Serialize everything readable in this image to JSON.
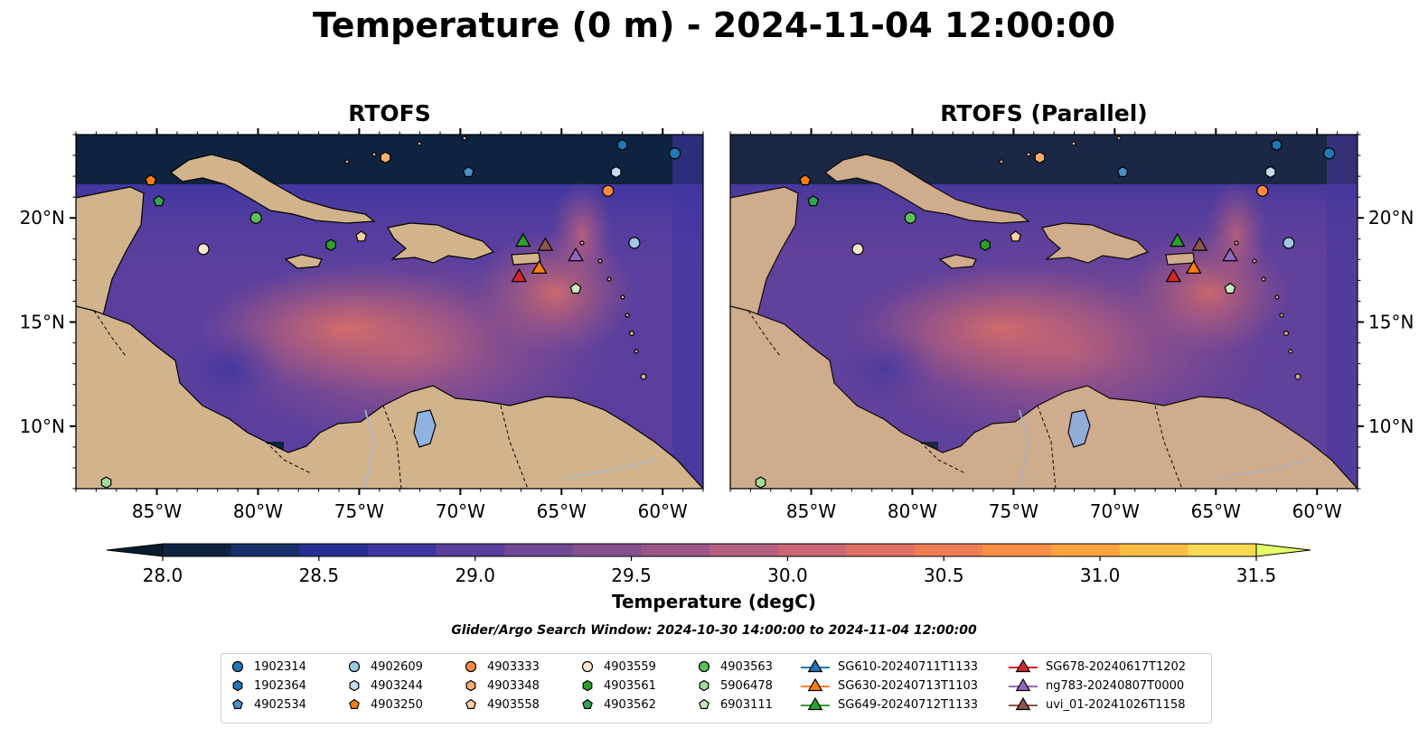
{
  "title": "Temperature (0 m) - 2024-11-04 12:00:00",
  "panels": [
    {
      "id": "left",
      "title": "RTOFS"
    },
    {
      "id": "right",
      "title": "RTOFS (Parallel)"
    }
  ],
  "map": {
    "lon_range": [
      -89,
      -58
    ],
    "lat_range": [
      7,
      24
    ],
    "x_ticks": [
      -85,
      -80,
      -75,
      -70,
      -65,
      -60
    ],
    "x_tick_labels": [
      "85°W",
      "80°W",
      "75°W",
      "70°W",
      "65°W",
      "60°W"
    ],
    "y_ticks": [
      10,
      15,
      20
    ],
    "y_tick_labels": [
      "10°N",
      "15°N",
      "20°N"
    ],
    "land_color": "#d2b48c",
    "ocean_color": "#5b4196"
  },
  "colorbar": {
    "min": 28.0,
    "max": 31.5,
    "ticks": [
      "28.0",
      "28.5",
      "29.0",
      "29.5",
      "30.0",
      "30.5",
      "31.0",
      "31.5"
    ],
    "label": "Temperature (degC)",
    "colors": [
      "#0e2340",
      "#17306a",
      "#273092",
      "#3f36a0",
      "#5a3f9e",
      "#704896",
      "#84508f",
      "#9c5688",
      "#b45f80",
      "#cb6774",
      "#de7066",
      "#ef7d54",
      "#f88f45",
      "#fba23e",
      "#fbbd45",
      "#f6d950"
    ],
    "under_color": "#071a2e",
    "over_color": "#e5ff6a"
  },
  "search_window": "Glider/Argo Search Window: 2024-10-30 14:00:00 to 2024-11-04 12:00:00",
  "legend": [
    {
      "label": "1902314",
      "marker": "circle",
      "color": "#1f77b4"
    },
    {
      "label": "1902364",
      "marker": "hexagon",
      "color": "#1f77b4"
    },
    {
      "label": "4902534",
      "marker": "pentagon",
      "color": "#4a90c8"
    },
    {
      "label": "4902609",
      "marker": "circle",
      "color": "#9ecae1"
    },
    {
      "label": "4903244",
      "marker": "hexagon",
      "color": "#c6dbef"
    },
    {
      "label": "4903250",
      "marker": "pentagon",
      "color": "#ff7f0e"
    },
    {
      "label": "4903333",
      "marker": "circle",
      "color": "#fd8d3c"
    },
    {
      "label": "4903348",
      "marker": "hexagon",
      "color": "#fdae6b"
    },
    {
      "label": "4903558",
      "marker": "pentagon",
      "color": "#fdd0a2"
    },
    {
      "label": "4903559",
      "marker": "circle",
      "color": "#fee6ce"
    },
    {
      "label": "4903561",
      "marker": "hexagon",
      "color": "#2ca02c"
    },
    {
      "label": "4903562",
      "marker": "pentagon",
      "color": "#31a354"
    },
    {
      "label": "4903563",
      "marker": "circle",
      "color": "#5cbf5c"
    },
    {
      "label": "5906478",
      "marker": "hexagon",
      "color": "#a1d99b"
    },
    {
      "label": "6903111",
      "marker": "pentagon",
      "color": "#c7e9c0"
    },
    {
      "label": "SG610-20240711T1133",
      "marker": "triangle-line",
      "color": "#1f77b4"
    },
    {
      "label": "SG630-20240713T1103",
      "marker": "triangle-line",
      "color": "#ff7f0e"
    },
    {
      "label": "SG649-20240712T1133",
      "marker": "triangle-line",
      "color": "#2ca02c"
    },
    {
      "label": "SG678-20240617T1202",
      "marker": "triangle-line",
      "color": "#d62728"
    },
    {
      "label": "ng783-20240807T0000",
      "marker": "triangle-line",
      "color": "#9467bd"
    },
    {
      "label": "uvi_01-20241026T1158",
      "marker": "triangle-line",
      "color": "#8c564b"
    }
  ],
  "observations": [
    {
      "lon": -59.4,
      "lat": 23.1,
      "marker": "circle",
      "color": "#1f77b4"
    },
    {
      "lon": -62.0,
      "lat": 23.5,
      "marker": "hexagon",
      "color": "#1f77b4"
    },
    {
      "lon": -69.6,
      "lat": 22.2,
      "marker": "pentagon",
      "color": "#4a90c8"
    },
    {
      "lon": -61.4,
      "lat": 18.8,
      "marker": "circle",
      "color": "#9ecae1"
    },
    {
      "lon": -62.3,
      "lat": 22.2,
      "marker": "hexagon",
      "color": "#c6dbef"
    },
    {
      "lon": -85.3,
      "lat": 21.8,
      "marker": "pentagon",
      "color": "#ff7f0e"
    },
    {
      "lon": -62.7,
      "lat": 21.3,
      "marker": "circle",
      "color": "#fd8d3c"
    },
    {
      "lon": -73.7,
      "lat": 22.9,
      "marker": "hexagon",
      "color": "#fdae6b"
    },
    {
      "lon": -74.9,
      "lat": 19.1,
      "marker": "pentagon",
      "color": "#fdd0a2"
    },
    {
      "lon": -82.7,
      "lat": 18.5,
      "marker": "circle",
      "color": "#fee6ce"
    },
    {
      "lon": -76.4,
      "lat": 18.7,
      "marker": "hexagon",
      "color": "#2ca02c"
    },
    {
      "lon": -84.9,
      "lat": 20.8,
      "marker": "pentagon",
      "color": "#31a354"
    },
    {
      "lon": -80.1,
      "lat": 20.0,
      "marker": "circle",
      "color": "#5cbf5c"
    },
    {
      "lon": -87.5,
      "lat": 7.3,
      "marker": "hexagon",
      "color": "#a1d99b"
    },
    {
      "lon": -64.3,
      "lat": 16.6,
      "marker": "pentagon",
      "color": "#c7e9c0"
    },
    {
      "lon": -66.9,
      "lat": 18.9,
      "marker": "triangle",
      "color": "#2ca02c"
    },
    {
      "lon": -67.1,
      "lat": 17.2,
      "marker": "triangle",
      "color": "#d62728"
    },
    {
      "lon": -66.1,
      "lat": 17.6,
      "marker": "triangle",
      "color": "#ff7f0e"
    },
    {
      "lon": -65.8,
      "lat": 18.7,
      "marker": "triangle",
      "color": "#8c564b"
    },
    {
      "lon": -64.3,
      "lat": 18.2,
      "marker": "triangle",
      "color": "#9467bd"
    }
  ]
}
